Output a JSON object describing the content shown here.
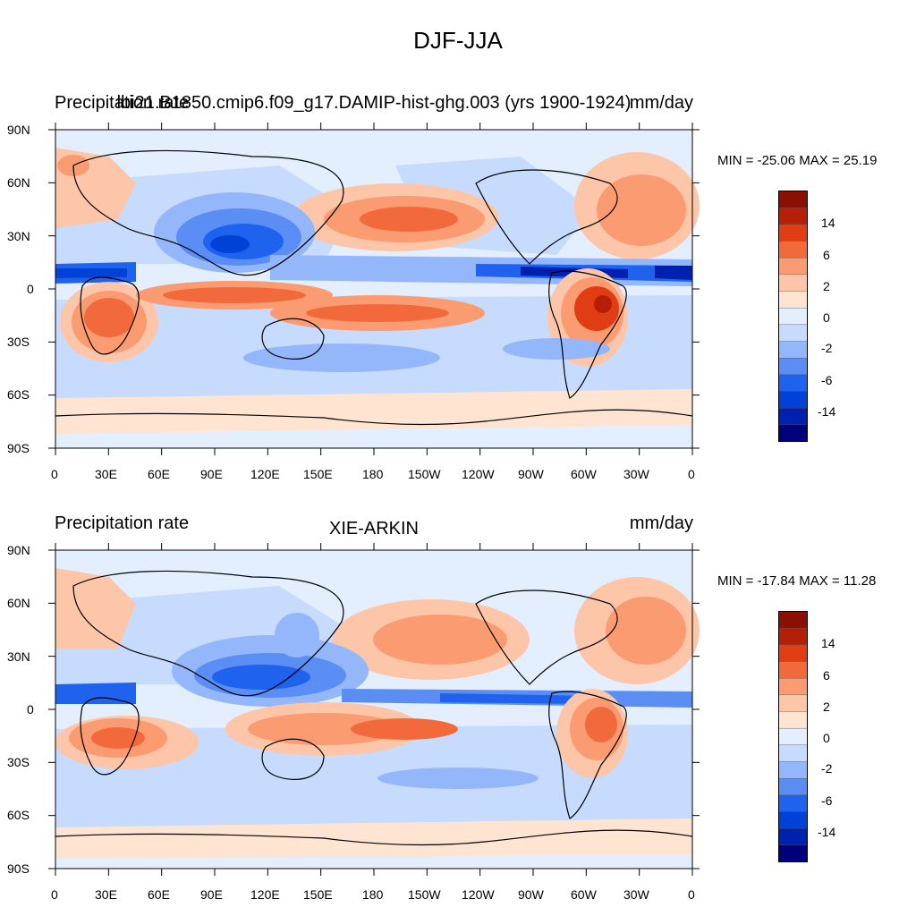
{
  "figure_title": "DJF-JJA",
  "colors": {
    "levels": [
      "#00007c",
      "#0020b0",
      "#0042d8",
      "#1f62ee",
      "#5b8ef5",
      "#94b6fa",
      "#c6dbfd",
      "#e3eefe",
      "#ffe4d2",
      "#fec6a8",
      "#fb9b72",
      "#f26a3c",
      "#e03d15",
      "#b51f08",
      "#8a0f05"
    ]
  },
  "colorbar": {
    "labels": [
      "14",
      "6",
      "2",
      "0",
      "-2",
      "-6",
      "-14"
    ]
  },
  "panels": [
    {
      "id": "model",
      "left_title": "Precipitation rate",
      "center_title": "lbi21.B1850.cmip6.f09_g17.DAMIP-hist-ghg.003 (yrs 1900-1924)",
      "right_title": "mm/day",
      "minmax": "MIN = -25.06 MAX =  25.19",
      "lat_labels": [
        "90N",
        "60N",
        "30N",
        "0",
        "30S",
        "60S",
        "90S"
      ],
      "lon_labels": [
        "0",
        "30E",
        "60E",
        "90E",
        "120E",
        "150E",
        "180",
        "150W",
        "120W",
        "90W",
        "60W",
        "30W",
        "0"
      ]
    },
    {
      "id": "obs",
      "left_title": "Precipitation rate",
      "center_title": "XIE-ARKIN",
      "right_title": "mm/day",
      "minmax": "MIN = -17.84 MAX =  11.28",
      "lat_labels": [
        "90N",
        "60N",
        "30N",
        "0",
        "30S",
        "60S",
        "90S"
      ],
      "lon_labels": [
        "0",
        "30E",
        "60E",
        "90E",
        "120E",
        "150E",
        "180",
        "150W",
        "120W",
        "90W",
        "60W",
        "30W",
        "0"
      ]
    }
  ]
}
